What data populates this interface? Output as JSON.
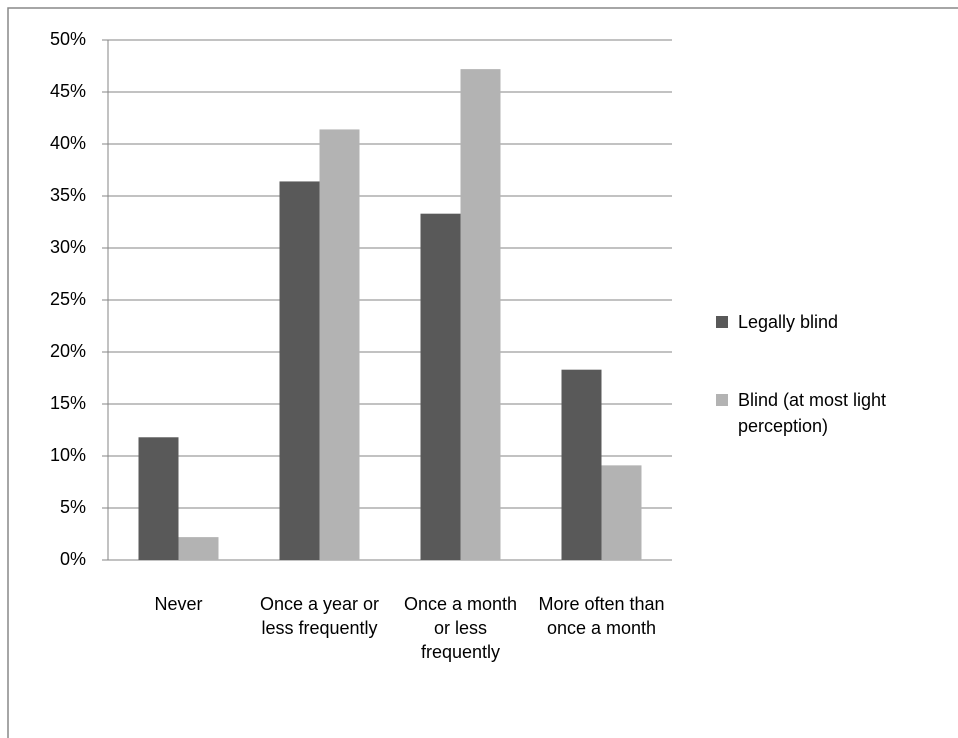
{
  "chart_data": {
    "type": "bar",
    "categories": [
      "Never",
      "Once a year or less frequently",
      "Once a month or less frequently",
      "More often than once a month"
    ],
    "series": [
      {
        "name": "Legally blind",
        "color": "#595959",
        "values": [
          11.8,
          36.4,
          33.3,
          18.3
        ]
      },
      {
        "name": "Blind (at most light perception)",
        "color": "#b3b3b3",
        "values": [
          2.2,
          41.4,
          47.2,
          9.1
        ]
      }
    ],
    "ylim": [
      0,
      50
    ],
    "yticks": [
      {
        "value": 0,
        "label": "0%"
      },
      {
        "value": 5,
        "label": "5%"
      },
      {
        "value": 10,
        "label": "10%"
      },
      {
        "value": 15,
        "label": "15%"
      },
      {
        "value": 20,
        "label": "20%"
      },
      {
        "value": 25,
        "label": "25%"
      },
      {
        "value": 30,
        "label": "30%"
      },
      {
        "value": 35,
        "label": "35%"
      },
      {
        "value": 40,
        "label": "40%"
      },
      {
        "value": 45,
        "label": "45%"
      },
      {
        "value": 50,
        "label": "50%"
      }
    ],
    "grid": true,
    "legend": "right"
  }
}
